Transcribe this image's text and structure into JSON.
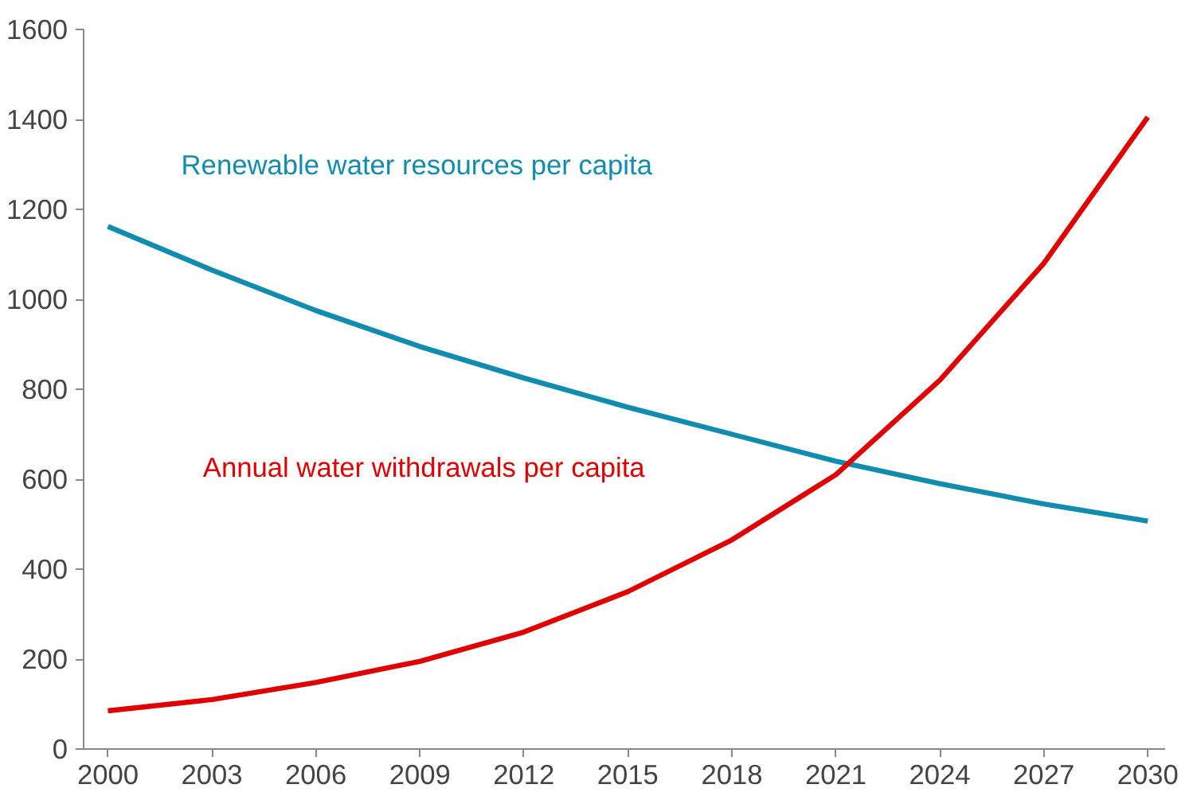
{
  "chart_data": {
    "type": "line",
    "x": [
      2000,
      2003,
      2006,
      2009,
      2012,
      2015,
      2018,
      2021,
      2024,
      2027,
      2030
    ],
    "series": [
      {
        "name": "Renewable water resources per capita",
        "color": "#108cb0",
        "values": [
          1162,
          1065,
          975,
          895,
          825,
          760,
          700,
          640,
          590,
          545,
          507
        ]
      },
      {
        "name": "Annual water withdrawals per capita",
        "color": "#e00000",
        "values": [
          85,
          110,
          148,
          195,
          260,
          350,
          465,
          610,
          820,
          1080,
          1405
        ]
      }
    ],
    "xlim": [
      1999.3,
      2030.5
    ],
    "xticks": [
      2000,
      2003,
      2006,
      2009,
      2012,
      2015,
      2018,
      2021,
      2024,
      2027,
      2030
    ],
    "ylim": [
      0,
      1600
    ],
    "yticks": [
      0,
      200,
      400,
      600,
      800,
      1000,
      1200,
      1400,
      1600
    ],
    "marker": "none",
    "line_style": "solid"
  }
}
